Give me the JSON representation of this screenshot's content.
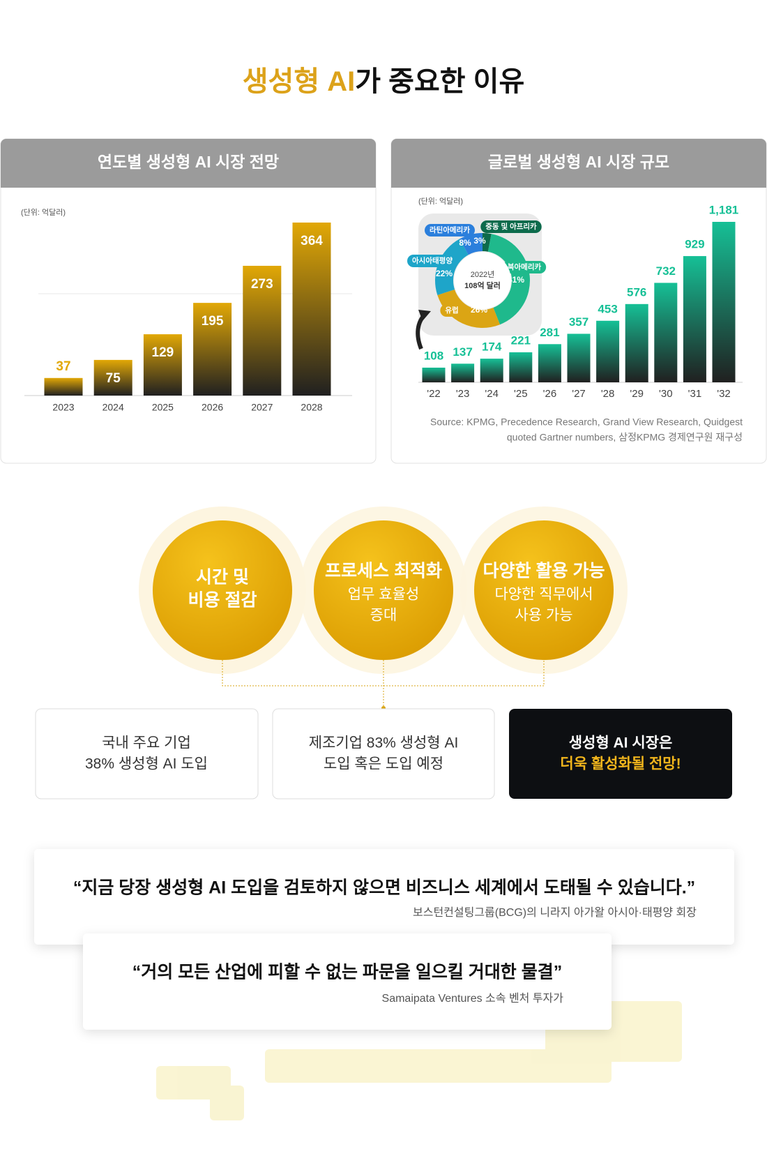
{
  "header": {
    "title_highlight": "생성형 AI",
    "title_rest": "가 중요한 이유"
  },
  "chart_data": [
    {
      "type": "bar",
      "title": "연도별 생성형 AI 시장 전망",
      "unit": "(단위: 억달러)",
      "categories": [
        "2023",
        "2024",
        "2025",
        "2026",
        "2027",
        "2028"
      ],
      "values": [
        37,
        75,
        129,
        195,
        273,
        364
      ],
      "color": "#e2a806"
    },
    {
      "type": "pie",
      "center_label": [
        "2022년",
        "108억 달러"
      ],
      "categories": [
        "중동 및 아프리카",
        "북아메리카",
        "유럽",
        "아시아태평양",
        "라틴아메리카"
      ],
      "values": [
        3,
        41,
        26,
        22,
        8
      ],
      "value_labels": [
        "3%",
        "41%",
        "26%",
        "22%",
        "8%"
      ],
      "colors": [
        "#0d6b4c",
        "#1fb98c",
        "#dba514",
        "#1ea5c9",
        "#2b7fdc"
      ]
    },
    {
      "type": "bar",
      "title": "글로벌 생성형 AI 시장 규모",
      "unit": "(단위: 억달러)",
      "categories": [
        "'22",
        "'23",
        "'24",
        "'25",
        "'26",
        "'27",
        "'28",
        "'29",
        "'30",
        "'31",
        "'32"
      ],
      "values": [
        108,
        137,
        174,
        221,
        281,
        357,
        453,
        576,
        732,
        929,
        1181
      ],
      "value_labels": [
        "108",
        "137",
        "174",
        "221",
        "281",
        "357",
        "453",
        "576",
        "732",
        "929",
        "1,181"
      ],
      "color": "#16c096",
      "source": [
        "Source: KPMG, Precedence Research, Grand View Research, Quidgest",
        "quoted Gartner numbers, 삼정KPMG 경제연구원 재구성"
      ]
    }
  ],
  "circles": [
    {
      "title": [
        "시간 및",
        "비용 절감"
      ]
    },
    {
      "title": [
        "프로세스 최적화"
      ],
      "desc": [
        "업무 효율성",
        "증대"
      ]
    },
    {
      "title": [
        "다양한 활용 가능"
      ],
      "desc": [
        "다양한 직무에서",
        "사용 가능"
      ]
    }
  ],
  "boxes": [
    {
      "lines": [
        "국내 주요 기업",
        "38% 생성형 AI 도입"
      ]
    },
    {
      "lines": [
        "제조기업 83% 생성형 AI",
        "도입 혹은 도입 예정"
      ]
    },
    {
      "lines": [
        "생성형 AI 시장은",
        "더욱 활성화될 전망!"
      ]
    }
  ],
  "quotes": [
    {
      "text": "“지금 당장 생성형 AI 도입을 검토하지 않으면 비즈니스 세계에서 도태될 수 있습니다.”",
      "source": "보스턴컨설팅그룹(BCG)의 니라지 아가왈 아시아·태평양 회장"
    },
    {
      "text": "“거의 모든 산업에 피할 수 없는 파문을 일으킬 거대한 물결”",
      "source": "Samaipata Ventures 소속 벤처 투자가"
    }
  ]
}
